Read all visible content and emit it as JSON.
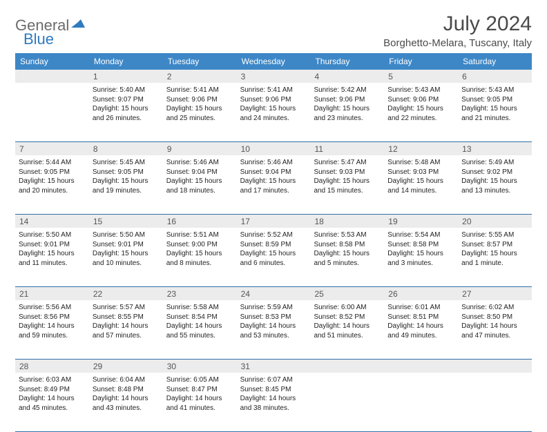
{
  "logo": {
    "text1": "General",
    "text2": "Blue"
  },
  "title": "July 2024",
  "location": "Borghetto-Melara, Tuscany, Italy",
  "header_bg": "#3d87c7",
  "border_color": "#2f6fa8",
  "daynum_bg": "#ececec",
  "days": [
    "Sunday",
    "Monday",
    "Tuesday",
    "Wednesday",
    "Thursday",
    "Friday",
    "Saturday"
  ],
  "weeks": [
    {
      "numbers": [
        "",
        "1",
        "2",
        "3",
        "4",
        "5",
        "6"
      ],
      "cells": [
        {
          "empty": true
        },
        {
          "sunrise": "Sunrise: 5:40 AM",
          "sunset": "Sunset: 9:07 PM",
          "day1": "Daylight: 15 hours",
          "day2": "and 26 minutes."
        },
        {
          "sunrise": "Sunrise: 5:41 AM",
          "sunset": "Sunset: 9:06 PM",
          "day1": "Daylight: 15 hours",
          "day2": "and 25 minutes."
        },
        {
          "sunrise": "Sunrise: 5:41 AM",
          "sunset": "Sunset: 9:06 PM",
          "day1": "Daylight: 15 hours",
          "day2": "and 24 minutes."
        },
        {
          "sunrise": "Sunrise: 5:42 AM",
          "sunset": "Sunset: 9:06 PM",
          "day1": "Daylight: 15 hours",
          "day2": "and 23 minutes."
        },
        {
          "sunrise": "Sunrise: 5:43 AM",
          "sunset": "Sunset: 9:06 PM",
          "day1": "Daylight: 15 hours",
          "day2": "and 22 minutes."
        },
        {
          "sunrise": "Sunrise: 5:43 AM",
          "sunset": "Sunset: 9:05 PM",
          "day1": "Daylight: 15 hours",
          "day2": "and 21 minutes."
        }
      ]
    },
    {
      "numbers": [
        "7",
        "8",
        "9",
        "10",
        "11",
        "12",
        "13"
      ],
      "cells": [
        {
          "sunrise": "Sunrise: 5:44 AM",
          "sunset": "Sunset: 9:05 PM",
          "day1": "Daylight: 15 hours",
          "day2": "and 20 minutes."
        },
        {
          "sunrise": "Sunrise: 5:45 AM",
          "sunset": "Sunset: 9:05 PM",
          "day1": "Daylight: 15 hours",
          "day2": "and 19 minutes."
        },
        {
          "sunrise": "Sunrise: 5:46 AM",
          "sunset": "Sunset: 9:04 PM",
          "day1": "Daylight: 15 hours",
          "day2": "and 18 minutes."
        },
        {
          "sunrise": "Sunrise: 5:46 AM",
          "sunset": "Sunset: 9:04 PM",
          "day1": "Daylight: 15 hours",
          "day2": "and 17 minutes."
        },
        {
          "sunrise": "Sunrise: 5:47 AM",
          "sunset": "Sunset: 9:03 PM",
          "day1": "Daylight: 15 hours",
          "day2": "and 15 minutes."
        },
        {
          "sunrise": "Sunrise: 5:48 AM",
          "sunset": "Sunset: 9:03 PM",
          "day1": "Daylight: 15 hours",
          "day2": "and 14 minutes."
        },
        {
          "sunrise": "Sunrise: 5:49 AM",
          "sunset": "Sunset: 9:02 PM",
          "day1": "Daylight: 15 hours",
          "day2": "and 13 minutes."
        }
      ]
    },
    {
      "numbers": [
        "14",
        "15",
        "16",
        "17",
        "18",
        "19",
        "20"
      ],
      "cells": [
        {
          "sunrise": "Sunrise: 5:50 AM",
          "sunset": "Sunset: 9:01 PM",
          "day1": "Daylight: 15 hours",
          "day2": "and 11 minutes."
        },
        {
          "sunrise": "Sunrise: 5:50 AM",
          "sunset": "Sunset: 9:01 PM",
          "day1": "Daylight: 15 hours",
          "day2": "and 10 minutes."
        },
        {
          "sunrise": "Sunrise: 5:51 AM",
          "sunset": "Sunset: 9:00 PM",
          "day1": "Daylight: 15 hours",
          "day2": "and 8 minutes."
        },
        {
          "sunrise": "Sunrise: 5:52 AM",
          "sunset": "Sunset: 8:59 PM",
          "day1": "Daylight: 15 hours",
          "day2": "and 6 minutes."
        },
        {
          "sunrise": "Sunrise: 5:53 AM",
          "sunset": "Sunset: 8:58 PM",
          "day1": "Daylight: 15 hours",
          "day2": "and 5 minutes."
        },
        {
          "sunrise": "Sunrise: 5:54 AM",
          "sunset": "Sunset: 8:58 PM",
          "day1": "Daylight: 15 hours",
          "day2": "and 3 minutes."
        },
        {
          "sunrise": "Sunrise: 5:55 AM",
          "sunset": "Sunset: 8:57 PM",
          "day1": "Daylight: 15 hours",
          "day2": "and 1 minute."
        }
      ]
    },
    {
      "numbers": [
        "21",
        "22",
        "23",
        "24",
        "25",
        "26",
        "27"
      ],
      "cells": [
        {
          "sunrise": "Sunrise: 5:56 AM",
          "sunset": "Sunset: 8:56 PM",
          "day1": "Daylight: 14 hours",
          "day2": "and 59 minutes."
        },
        {
          "sunrise": "Sunrise: 5:57 AM",
          "sunset": "Sunset: 8:55 PM",
          "day1": "Daylight: 14 hours",
          "day2": "and 57 minutes."
        },
        {
          "sunrise": "Sunrise: 5:58 AM",
          "sunset": "Sunset: 8:54 PM",
          "day1": "Daylight: 14 hours",
          "day2": "and 55 minutes."
        },
        {
          "sunrise": "Sunrise: 5:59 AM",
          "sunset": "Sunset: 8:53 PM",
          "day1": "Daylight: 14 hours",
          "day2": "and 53 minutes."
        },
        {
          "sunrise": "Sunrise: 6:00 AM",
          "sunset": "Sunset: 8:52 PM",
          "day1": "Daylight: 14 hours",
          "day2": "and 51 minutes."
        },
        {
          "sunrise": "Sunrise: 6:01 AM",
          "sunset": "Sunset: 8:51 PM",
          "day1": "Daylight: 14 hours",
          "day2": "and 49 minutes."
        },
        {
          "sunrise": "Sunrise: 6:02 AM",
          "sunset": "Sunset: 8:50 PM",
          "day1": "Daylight: 14 hours",
          "day2": "and 47 minutes."
        }
      ]
    },
    {
      "numbers": [
        "28",
        "29",
        "30",
        "31",
        "",
        "",
        ""
      ],
      "cells": [
        {
          "sunrise": "Sunrise: 6:03 AM",
          "sunset": "Sunset: 8:49 PM",
          "day1": "Daylight: 14 hours",
          "day2": "and 45 minutes."
        },
        {
          "sunrise": "Sunrise: 6:04 AM",
          "sunset": "Sunset: 8:48 PM",
          "day1": "Daylight: 14 hours",
          "day2": "and 43 minutes."
        },
        {
          "sunrise": "Sunrise: 6:05 AM",
          "sunset": "Sunset: 8:47 PM",
          "day1": "Daylight: 14 hours",
          "day2": "and 41 minutes."
        },
        {
          "sunrise": "Sunrise: 6:07 AM",
          "sunset": "Sunset: 8:45 PM",
          "day1": "Daylight: 14 hours",
          "day2": "and 38 minutes."
        },
        {
          "empty": true
        },
        {
          "empty": true
        },
        {
          "empty": true
        }
      ]
    }
  ]
}
